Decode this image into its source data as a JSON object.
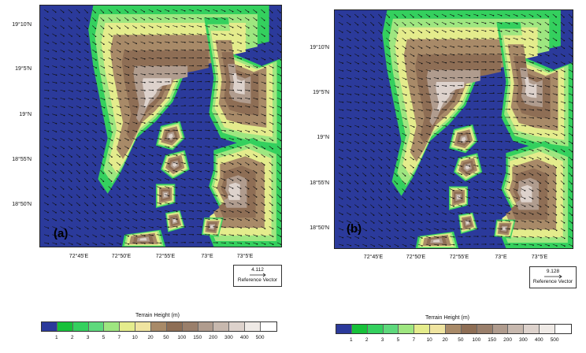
{
  "lat_labels": [
    "19°10'N",
    "19°5'N",
    "19°N",
    "18°55'N",
    "18°50'N"
  ],
  "lon_labels": [
    "72°45'E",
    "72°50'E",
    "72°55'E",
    "73°E",
    "73°5'E"
  ],
  "panels": [
    {
      "letter": "(a)",
      "ref_value": "4.112",
      "ref_label": "Reference Vector"
    },
    {
      "letter": "(b)",
      "ref_value": "9.128",
      "ref_label": "Reference Vector"
    }
  ],
  "colorbar": {
    "title": "Terrain Height  (m)",
    "ticks": [
      "1",
      "2",
      "3",
      "5",
      "7",
      "10",
      "20",
      "50",
      "100",
      "150",
      "200",
      "300",
      "400",
      "500"
    ],
    "colors": [
      "#2b3a9b",
      "#17c13a",
      "#34d05e",
      "#5ed97c",
      "#9ee680",
      "#e4ec8c",
      "#efe4a0",
      "#a88a68",
      "#8e6e55",
      "#9a7f6b",
      "#b09c8e",
      "#c7b8ae",
      "#ddd2cc",
      "#efeae6",
      "#ffffff"
    ]
  }
}
